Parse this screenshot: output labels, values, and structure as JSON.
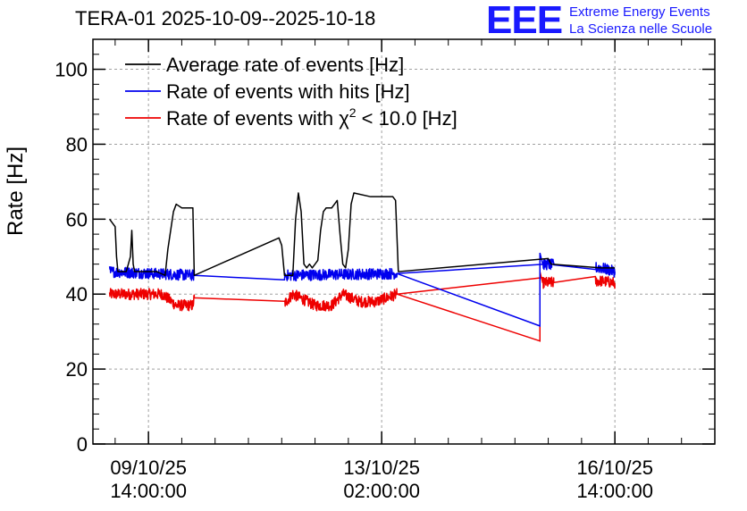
{
  "title": "TERA-01 2025-10-09--2025-10-18",
  "logo": {
    "mark": "EEE",
    "line1": "Extreme Energy Events",
    "line2": "La Scienza nelle Scuole"
  },
  "chart_data": {
    "type": "line",
    "title": "TERA-01 2025-10-09--2025-10-18",
    "ylabel": "Rate [Hz]",
    "xlabel": "",
    "ylim": [
      0,
      108
    ],
    "xlim": [
      -20,
      204
    ],
    "x_unit": "hours since 09/10/25 14:00:00",
    "grid": true,
    "legend_position": "top-left",
    "y_ticks": [
      0,
      20,
      40,
      60,
      80,
      100
    ],
    "x_ticks": [
      {
        "x": 0,
        "date": "09/10/25",
        "time": "14:00:00"
      },
      {
        "x": 84,
        "date": "13/10/25",
        "time": "02:00:00"
      },
      {
        "x": 168,
        "date": "16/10/25",
        "time": "14:00:00"
      }
    ],
    "series": [
      {
        "name": "Average rate of events [Hz]",
        "color": "#000000",
        "points": [
          [
            -14,
            60
          ],
          [
            -13,
            59
          ],
          [
            -12,
            58
          ],
          [
            -11.5,
            50
          ],
          [
            -11,
            46
          ],
          [
            -8,
            46
          ],
          [
            -6.5,
            50
          ],
          [
            -6,
            57
          ],
          [
            -5.5,
            48
          ],
          [
            -5,
            46
          ],
          [
            3,
            46
          ],
          [
            6,
            45
          ],
          [
            7,
            52
          ],
          [
            9,
            62
          ],
          [
            10,
            64
          ],
          [
            12,
            63
          ],
          [
            16,
            63
          ],
          [
            16.5,
            45
          ],
          [
            47,
            55
          ],
          [
            48,
            53
          ],
          [
            49,
            45
          ],
          [
            52,
            45
          ],
          [
            53,
            60
          ],
          [
            54,
            67
          ],
          [
            55,
            62
          ],
          [
            56,
            48
          ],
          [
            57,
            47
          ],
          [
            58,
            48
          ],
          [
            59,
            47
          ],
          [
            60,
            48
          ],
          [
            61,
            49
          ],
          [
            62,
            57
          ],
          [
            63,
            62
          ],
          [
            64,
            63
          ],
          [
            66,
            63
          ],
          [
            67,
            64
          ],
          [
            68,
            65
          ],
          [
            69,
            56
          ],
          [
            70,
            48
          ],
          [
            71,
            47
          ],
          [
            72,
            52
          ],
          [
            73,
            64
          ],
          [
            74,
            67
          ],
          [
            80,
            66
          ],
          [
            84,
            66
          ],
          [
            88,
            66
          ],
          [
            89,
            65
          ],
          [
            90,
            46
          ],
          [
            144,
            49.5
          ],
          [
            145,
            48
          ],
          [
            163,
            47
          ],
          [
            168,
            47
          ]
        ]
      },
      {
        "name": "Rate of events with hits [Hz]",
        "color": "#0000ee",
        "noise": 1.5,
        "points": [
          [
            -14,
            46
          ],
          [
            16.5,
            45
          ],
          [
            16.5,
            44.5
          ],
          [
            49,
            45
          ],
          [
            89.5,
            45.5
          ],
          [
            90,
            46
          ],
          [
            141,
            31.5
          ],
          [
            141,
            51
          ],
          [
            142,
            48
          ],
          [
            163,
            47
          ],
          [
            168,
            46
          ]
        ],
        "segments": [
          [
            -14,
            16.5
          ],
          [
            49,
            89.5
          ],
          [
            142,
            146
          ],
          [
            161,
            168
          ]
        ]
      },
      {
        "name": "Rate of events with χ² < 10.0 [Hz]",
        "color": "#ee0000",
        "noise": 1.5,
        "points": [
          [
            -14,
            40
          ],
          [
            -10,
            40
          ],
          [
            0,
            40
          ],
          [
            5,
            40
          ],
          [
            10,
            37
          ],
          [
            16,
            37
          ],
          [
            16.5,
            39
          ],
          [
            49,
            37.5
          ],
          [
            52,
            40
          ],
          [
            60,
            37
          ],
          [
            66,
            37
          ],
          [
            70,
            40
          ],
          [
            76,
            38
          ],
          [
            82,
            38
          ],
          [
            89.5,
            40
          ],
          [
            90,
            40
          ],
          [
            141,
            27.5
          ],
          [
            141,
            46
          ],
          [
            142,
            43
          ],
          [
            163,
            43.5
          ],
          [
            168,
            43
          ]
        ],
        "segments": [
          [
            -14,
            16.5
          ],
          [
            49,
            89.5
          ],
          [
            142,
            146
          ],
          [
            161,
            168
          ]
        ]
      }
    ],
    "legend": [
      {
        "label_pre": "Average rate of events [Hz]",
        "label_sup": "",
        "label_post": "",
        "color": "#000000"
      },
      {
        "label_pre": "Rate of events with hits [Hz]",
        "label_sup": "",
        "label_post": "",
        "color": "#0000ee"
      },
      {
        "label_pre": "Rate of events with χ",
        "label_sup": "2",
        "label_post": " < 10.0 [Hz]",
        "color": "#ee0000"
      }
    ]
  }
}
